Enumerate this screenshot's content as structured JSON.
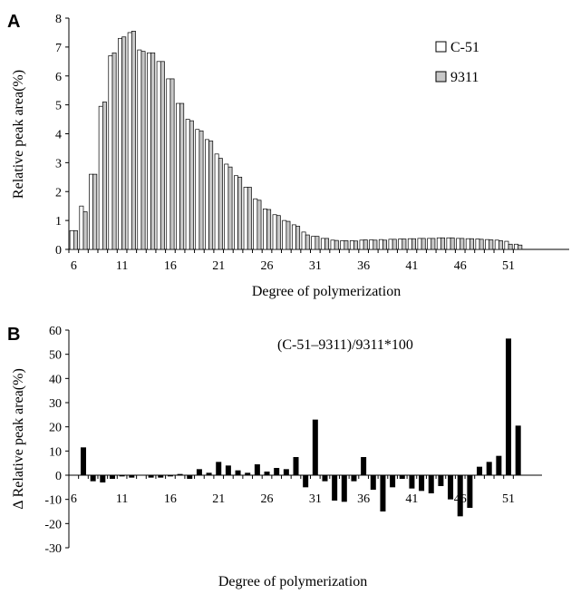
{
  "chart_data": [
    {
      "panel": "A",
      "type": "bar",
      "ylabel": "Relative peak area(%)",
      "xlabel": "Degree of polymerization",
      "ylim": [
        0,
        8
      ],
      "yticks": [
        "0",
        "1",
        "2",
        "3",
        "4",
        "5",
        "6",
        "7",
        "8"
      ],
      "x_tick_labels": [
        "6",
        "11",
        "16",
        "21",
        "26",
        "31",
        "36",
        "41",
        "46",
        "51"
      ],
      "x": [
        6,
        7,
        8,
        9,
        10,
        11,
        12,
        13,
        14,
        15,
        16,
        17,
        18,
        19,
        20,
        21,
        22,
        23,
        24,
        25,
        26,
        27,
        28,
        29,
        30,
        31,
        32,
        33,
        34,
        35,
        36,
        37,
        38,
        39,
        40,
        41,
        42,
        43,
        44,
        45,
        46,
        47,
        48,
        49,
        50,
        51,
        52
      ],
      "series": [
        {
          "name": "C-51",
          "color": "#ffffff",
          "values": [
            0.65,
            1.5,
            2.6,
            4.95,
            6.7,
            7.3,
            7.5,
            6.9,
            6.8,
            6.5,
            5.9,
            5.05,
            4.5,
            4.15,
            3.8,
            3.3,
            2.95,
            2.55,
            2.15,
            1.75,
            1.4,
            1.2,
            1.0,
            0.85,
            0.6,
            0.45,
            0.38,
            0.32,
            0.3,
            0.3,
            0.32,
            0.33,
            0.34,
            0.35,
            0.36,
            0.37,
            0.38,
            0.38,
            0.4,
            0.4,
            0.38,
            0.37,
            0.36,
            0.34,
            0.32,
            0.28,
            0.18
          ]
        },
        {
          "name": "9311",
          "color": "#c8c8c8",
          "values": [
            0.65,
            1.3,
            2.6,
            5.1,
            6.8,
            7.35,
            7.55,
            6.85,
            6.8,
            6.5,
            5.9,
            5.05,
            4.45,
            4.1,
            3.75,
            3.15,
            2.85,
            2.5,
            2.15,
            1.7,
            1.38,
            1.17,
            0.97,
            0.8,
            0.5,
            0.45,
            0.38,
            0.31,
            0.3,
            0.29,
            0.33,
            0.32,
            0.32,
            0.35,
            0.36,
            0.37,
            0.38,
            0.38,
            0.4,
            0.4,
            0.38,
            0.37,
            0.35,
            0.33,
            0.3,
            0.18,
            0.15
          ]
        }
      ]
    },
    {
      "panel": "B",
      "type": "bar",
      "annotation": "(C-51–9311)/9311*100",
      "ylabel": "Δ Relative peak area(%)",
      "xlabel": "Degree of polymerization",
      "ylim": [
        -30,
        60
      ],
      "yticks": [
        "-30",
        "-20",
        "-10",
        "0",
        "10",
        "20",
        "30",
        "40",
        "50",
        "60"
      ],
      "x_tick_labels": [
        "6",
        "11",
        "16",
        "21",
        "26",
        "31",
        "36",
        "41",
        "46",
        "51"
      ],
      "x": [
        6,
        7,
        8,
        9,
        10,
        11,
        12,
        13,
        14,
        15,
        16,
        17,
        18,
        19,
        20,
        21,
        22,
        23,
        24,
        25,
        26,
        27,
        28,
        29,
        30,
        31,
        32,
        33,
        34,
        35,
        36,
        37,
        38,
        39,
        40,
        41,
        42,
        43,
        44,
        45,
        46,
        47,
        48,
        49,
        50,
        51,
        52
      ],
      "values": [
        0,
        11.5,
        -2.5,
        -3,
        -1.5,
        -0.5,
        -1,
        0,
        -1,
        -1,
        -0.5,
        0.5,
        -1.5,
        2.5,
        1,
        5.5,
        4,
        2,
        1,
        4.5,
        1.5,
        3,
        2.5,
        7.5,
        -5,
        23,
        -2.5,
        -10.5,
        -11,
        -2.5,
        7.5,
        -6,
        -15,
        -5,
        -1.5,
        -5.5,
        -6.5,
        -7.5,
        -4.5,
        -10,
        -17,
        -13.5,
        3.5,
        5.5,
        8,
        56.5,
        20.5
      ],
      "color": "#000000"
    }
  ]
}
